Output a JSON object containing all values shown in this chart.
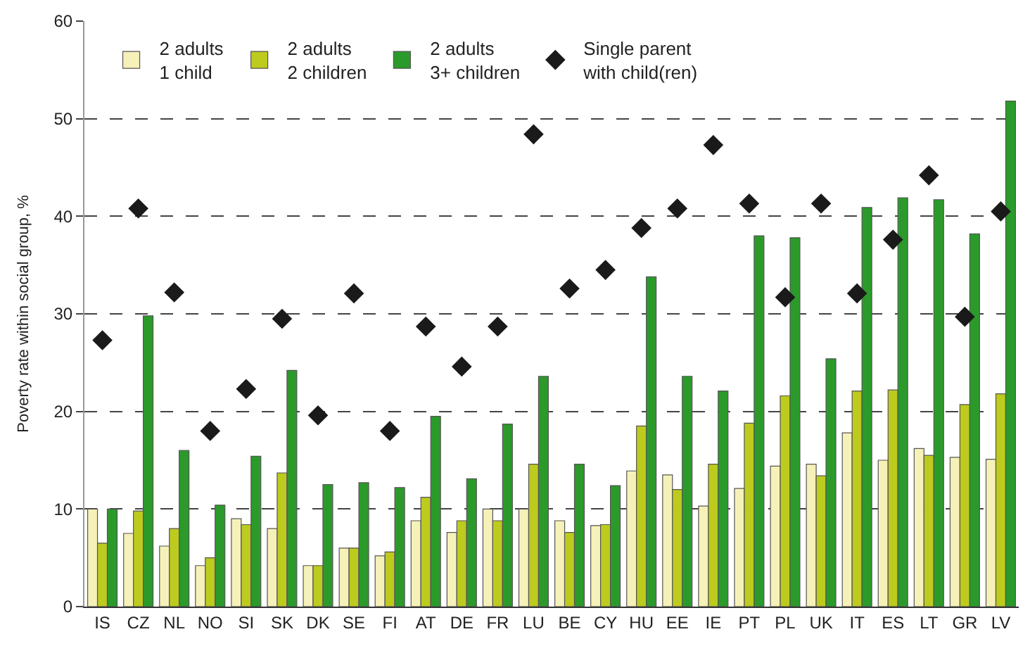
{
  "chart_data": {
    "type": "bar",
    "ylabel": "Poverty rate within social group, %",
    "categories": [
      "IS",
      "CZ",
      "NL",
      "NO",
      "SI",
      "SK",
      "DK",
      "SE",
      "FI",
      "AT",
      "DE",
      "FR",
      "LU",
      "BE",
      "CY",
      "HU",
      "EE",
      "IE",
      "PT",
      "PL",
      "UK",
      "IT",
      "ES",
      "LT",
      "GR",
      "LV"
    ],
    "series": [
      {
        "name": "2 adults\n1 child",
        "color": "#f6f1b8",
        "values": [
          10,
          7.5,
          6.2,
          4.2,
          9,
          8,
          4.2,
          6,
          5.2,
          8.8,
          7.6,
          10,
          10,
          8.8,
          8.3,
          13.9,
          13.5,
          10.3,
          12.1,
          14.4,
          14.6,
          17.8,
          15,
          16.2,
          15.3,
          15.1
        ]
      },
      {
        "name": "2 adults\n2 children",
        "color": "#bccb1e",
        "values": [
          6.5,
          9.8,
          8,
          5,
          8.4,
          13.7,
          4.2,
          6,
          5.6,
          11.2,
          8.8,
          8.8,
          14.6,
          7.6,
          8.4,
          18.5,
          12,
          14.6,
          18.8,
          21.6,
          13.4,
          22.1,
          22.2,
          15.5,
          20.7,
          21.8
        ]
      },
      {
        "name": "2 adults\n3+ children",
        "color": "#2b9a2b",
        "values": [
          10,
          29.8,
          16,
          10.4,
          15.4,
          24.2,
          12.5,
          12.7,
          12.2,
          19.5,
          13.1,
          18.7,
          23.6,
          14.6,
          12.4,
          33.8,
          23.6,
          22.1,
          38,
          37.8,
          25.4,
          40.9,
          41.9,
          41.7,
          38.2,
          51.8
        ]
      },
      {
        "name": "Single parent\nwith child(ren)",
        "type": "scatter",
        "marker": "diamond",
        "color": "#1a1a1a",
        "values": [
          27.3,
          40.8,
          32.2,
          18,
          22.3,
          29.5,
          19.6,
          32.1,
          18,
          28.7,
          24.6,
          28.7,
          48.4,
          32.6,
          34.5,
          38.8,
          40.8,
          47.3,
          41.3,
          31.7,
          41.3,
          32.1,
          37.6,
          44.2,
          29.7,
          40.5
        ]
      }
    ],
    "ylim": [
      0,
      60
    ],
    "yticks": [
      0,
      10,
      20,
      30,
      40,
      50,
      60
    ],
    "grid": "y",
    "legend": "top left"
  }
}
